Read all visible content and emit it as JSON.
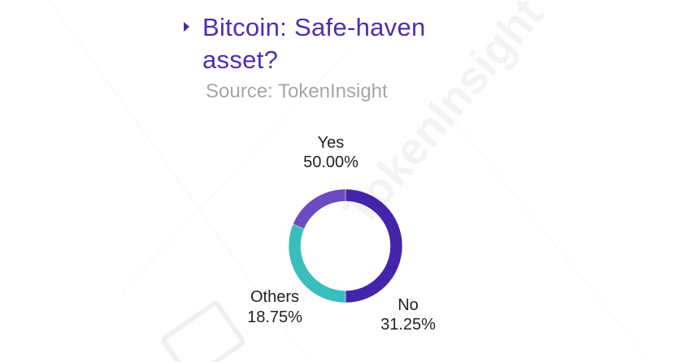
{
  "chart_data": {
    "type": "pie",
    "title": "Bitcoin: Safe-haven asset?",
    "subtitle": "Source: TokenInsight",
    "donut": true,
    "categories": [
      "Yes",
      "No",
      "Others"
    ],
    "values": [
      50.0,
      31.25,
      18.75
    ],
    "value_labels": [
      "50.00%",
      "31.25%",
      "18.75%"
    ],
    "colors": [
      "#4424aa",
      "#3bbdbd",
      "#6b4bbf"
    ]
  },
  "watermark": {
    "text": "TokenInsight"
  }
}
